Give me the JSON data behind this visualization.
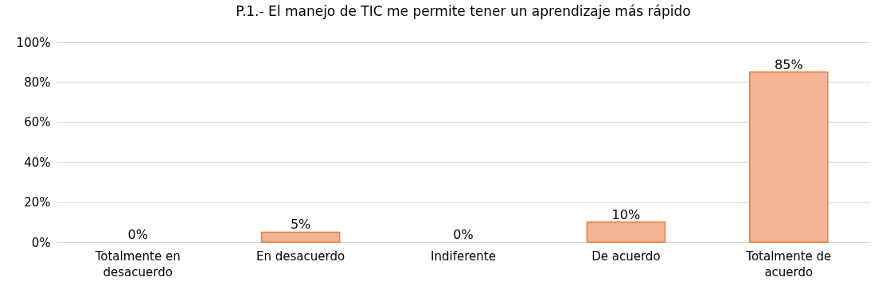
{
  "chart_data": {
    "type": "bar",
    "title": "P.1.- El manejo de TIC me permite tener un aprendizaje más rápido",
    "categories": [
      "Totalmente en desacuerdo",
      "En desacuerdo",
      "Indiferente",
      "De acuerdo",
      "Totalmente de acuerdo"
    ],
    "values": [
      0,
      5,
      0,
      10,
      85
    ],
    "value_labels": [
      "0%",
      "5%",
      "0%",
      "10%",
      "85%"
    ],
    "color": "#f4b393",
    "ylim": [
      0,
      100
    ],
    "yticks": [
      {
        "value": 0,
        "label": "0%"
      },
      {
        "value": 20,
        "label": "20%"
      },
      {
        "value": 40,
        "label": "40%"
      },
      {
        "value": 60,
        "label": "60%"
      },
      {
        "value": 80,
        "label": "80%"
      },
      {
        "value": 100,
        "label": "100%"
      }
    ],
    "grid": "y"
  }
}
